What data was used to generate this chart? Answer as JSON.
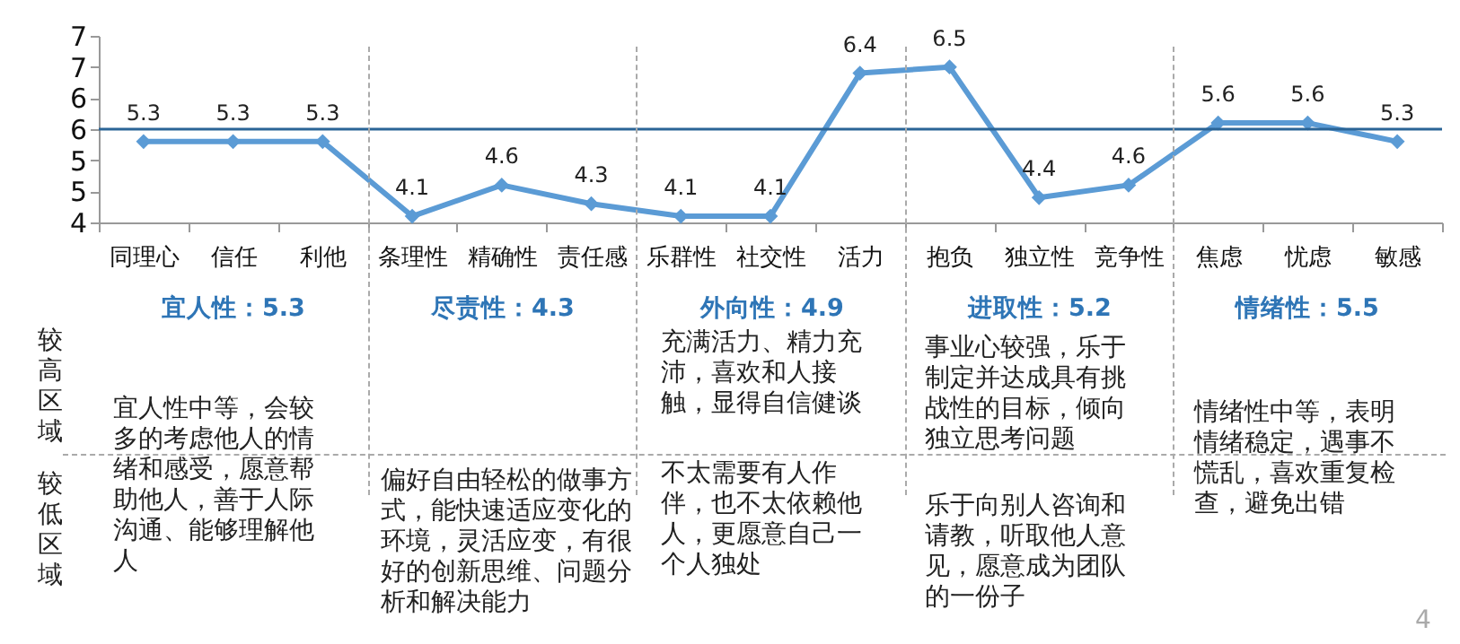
{
  "chart_data": {
    "type": "line",
    "categories": [
      "同理心",
      "信任",
      "利他",
      "条理性",
      "精确性",
      "责任感",
      "乐群性",
      "社交性",
      "活力",
      "抱负",
      "独立性",
      "竞争性",
      "焦虑",
      "忧虑",
      "敏感"
    ],
    "series": [
      {
        "color": "#5b9bd5",
        "values": [
          5.3,
          5.3,
          5.3,
          4.1,
          4.6,
          4.3,
          4.1,
          4.1,
          6.4,
          6.5,
          4.4,
          4.6,
          5.6,
          5.6,
          5.3
        ]
      }
    ],
    "data_labels": true,
    "marker": "diamond",
    "line_style": "solid",
    "grid": false,
    "ylim": [
      4,
      7
    ],
    "yticks": [
      4,
      {
        "value": 4.5,
        "label": "5"
      },
      5,
      {
        "value": 5.5,
        "label": "6"
      },
      6,
      {
        "value": 6.5,
        "label": "7"
      },
      7
    ],
    "ref_lines": [
      {
        "axis": "y",
        "value": 5.5,
        "color": "#2a6496"
      }
    ],
    "annotations": [
      "较高区域",
      "较低区域",
      "宜人性：5.3",
      "宜人性中等，会较多的考虑他人的情绪和感受，愿意帮助他人，善于人际沟通、能够理解他人",
      "尽责性：4.3",
      "偏好自由轻松的做事方式，能快速适应变化的环境，灵活应变，有很好的创新思维、问题分析和解决能力",
      "外向性：4.9",
      "充满活力、精力充沛，喜欢和人接触，显得自信健谈",
      "不太需要有人作伴，也不太依赖他人，更愿意自己一个人独处",
      "进取性：5.2",
      "事业心较强，乐于制定并达成具有挑战性的目标，倾向独立思考问题",
      "乐于向别人咨询和请教，听取他人意见，愿意成为团队的一份子",
      "情绪性：5.5",
      "情绪性中等，表明情绪稳定，遇事不慌乱，喜欢重复检查，避免出错",
      "4"
    ]
  }
}
